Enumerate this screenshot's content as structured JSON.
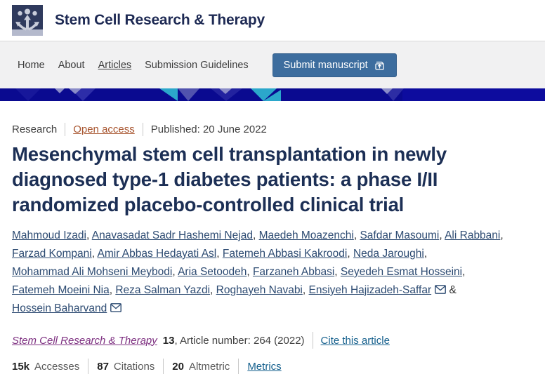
{
  "header": {
    "journal_title": "Stem Cell Research & Therapy"
  },
  "nav": {
    "items": [
      {
        "label": "Home",
        "active": false
      },
      {
        "label": "About",
        "active": false
      },
      {
        "label": "Articles",
        "active": true
      },
      {
        "label": "Submission Guidelines",
        "active": false
      }
    ],
    "submit_button": {
      "label": "Submit manuscript",
      "icon": "external-link-icon"
    }
  },
  "article": {
    "type_label": "Research",
    "access_label": "Open access",
    "published_label": "Published: 20 June 2022",
    "title": "Mesenchymal stem cell transplantation in newly diagnosed type-1 diabetes patients: a phase I/II randomized placebo-controlled clinical trial",
    "authors": [
      {
        "name": "Mahmoud Izadi",
        "email": false
      },
      {
        "name": "Anavasadat Sadr Hashemi Nejad",
        "email": false
      },
      {
        "name": "Maedeh Moazenchi",
        "email": false
      },
      {
        "name": "Safdar Masoumi",
        "email": false
      },
      {
        "name": "Ali Rabbani",
        "email": false
      },
      {
        "name": "Farzad Kompani",
        "email": false
      },
      {
        "name": "Amir Abbas Hedayati Asl",
        "email": false
      },
      {
        "name": "Fatemeh Abbasi Kakroodi",
        "email": false
      },
      {
        "name": "Neda Jaroughi",
        "email": false
      },
      {
        "name": "Mohammad Ali Mohseni Meybodi",
        "email": false
      },
      {
        "name": "Aria Setoodeh",
        "email": false
      },
      {
        "name": "Farzaneh Abbasi",
        "email": false
      },
      {
        "name": "Seyedeh Esmat Hosseini",
        "email": false
      },
      {
        "name": "Fatemeh Moeini Nia",
        "email": false
      },
      {
        "name": "Reza Salman Yazdi",
        "email": false
      },
      {
        "name": "Roghayeh Navabi",
        "email": false
      },
      {
        "name": "Ensiyeh Hajizadeh-Saffar",
        "email": true
      },
      {
        "name": "Hossein Baharvand",
        "email": true
      }
    ],
    "author_separator": ", ",
    "author_last_separator": " & ",
    "citation": {
      "journal": "Stem Cell Research & Therapy",
      "volume": "13",
      "article_number_label": ", Article number: 264 (2022)",
      "cite_link": "Cite this article"
    },
    "metrics": [
      {
        "value": "15k",
        "label": "Accesses",
        "link": false
      },
      {
        "value": "87",
        "label": "Citations",
        "link": false
      },
      {
        "value": "20",
        "label": "Altmetric",
        "link": false
      },
      {
        "value": "",
        "label": "Metrics",
        "link": true
      }
    ]
  },
  "icons": {
    "logo": "stem-cell-journal-logo",
    "submit": "external-link-icon",
    "email": "envelope-icon"
  },
  "colors": {
    "journal_title_navy": "#1e2a54",
    "article_title_navy": "#1c2f55",
    "nav_background": "#f1f1f2",
    "submit_button_blue": "#3d6d9e",
    "open_access_rust": "#a8552f",
    "author_link_blue": "#2d4b72",
    "cite_link_blue": "#15608d",
    "journal_link_purple": "#7d2f80",
    "banner_navy": "#0a0a90",
    "banner_cyan": "#2ba7cb",
    "banner_periwinkle": "#8a8cc8",
    "banner_blue": "#2d2da8",
    "banner_purple": "#5153ae"
  }
}
